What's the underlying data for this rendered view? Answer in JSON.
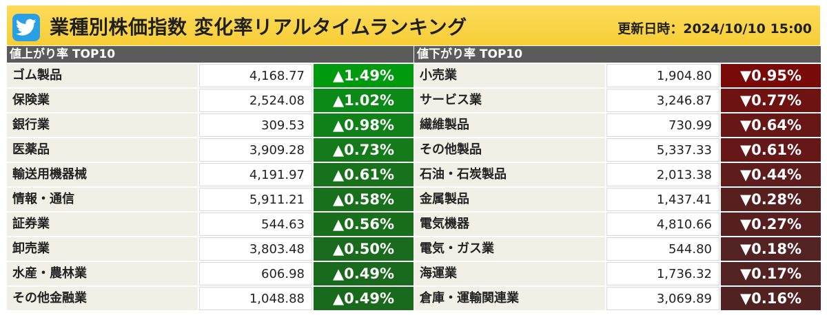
{
  "header": {
    "logo_icon": "twitter-bird-icon",
    "title": "業種別株価指数 変化率リアルタイムランキング",
    "updated_label": "更新日時：",
    "updated_value": "2024/10/10 15:00"
  },
  "gainers": {
    "heading": "値上がり率 TOP10",
    "rows": [
      {
        "name": "ゴム製品",
        "value": "4,168.77",
        "change": "▲1.49%",
        "color": "#009a0f"
      },
      {
        "name": "保険業",
        "value": "2,524.08",
        "change": "▲1.02%",
        "color": "#0b8a18"
      },
      {
        "name": "銀行業",
        "value": "309.53",
        "change": "▲0.98%",
        "color": "#108018"
      },
      {
        "name": "医薬品",
        "value": "3,909.28",
        "change": "▲0.73%",
        "color": "#147a1a"
      },
      {
        "name": "輸送用機器械",
        "value": "4,191.97",
        "change": "▲0.61%",
        "color": "#17721b"
      },
      {
        "name": "情報・通信",
        "value": "5,911.21",
        "change": "▲0.58%",
        "color": "#186f1c"
      },
      {
        "name": "証券業",
        "value": "544.63",
        "change": "▲0.56%",
        "color": "#196e1c"
      },
      {
        "name": "卸売業",
        "value": "3,803.48",
        "change": "▲0.50%",
        "color": "#1a6b1d"
      },
      {
        "name": "水産・農林業",
        "value": "606.98",
        "change": "▲0.49%",
        "color": "#1a6a1d"
      },
      {
        "name": "その他金融業",
        "value": "1,048.88",
        "change": "▲0.49%",
        "color": "#1a6a1d"
      }
    ]
  },
  "losers": {
    "heading": "値下がり率 TOP10",
    "rows": [
      {
        "name": "小売業",
        "value": "1,904.80",
        "change": "▼0.95%",
        "color": "#780a0a"
      },
      {
        "name": "サービス業",
        "value": "3,246.87",
        "change": "▼0.77%",
        "color": "#6e1212"
      },
      {
        "name": "繊維製品",
        "value": "730.99",
        "change": "▼0.64%",
        "color": "#681717"
      },
      {
        "name": "その他製品",
        "value": "5,337.33",
        "change": "▼0.61%",
        "color": "#661818"
      },
      {
        "name": "石油・石炭製品",
        "value": "2,013.38",
        "change": "▼0.44%",
        "color": "#5e1c1c"
      },
      {
        "name": "金属製品",
        "value": "1,437.41",
        "change": "▼0.28%",
        "color": "#581f1f"
      },
      {
        "name": "電気機器",
        "value": "4,810.66",
        "change": "▼0.27%",
        "color": "#571f1f"
      },
      {
        "name": "電気・ガス業",
        "value": "544.80",
        "change": "▼0.18%",
        "color": "#532222"
      },
      {
        "name": "海運業",
        "value": "1,736.32",
        "change": "▼0.17%",
        "color": "#532222"
      },
      {
        "name": "倉庫・運輸関連業",
        "value": "3,069.89",
        "change": "▼0.16%",
        "color": "#522222"
      }
    ]
  }
}
